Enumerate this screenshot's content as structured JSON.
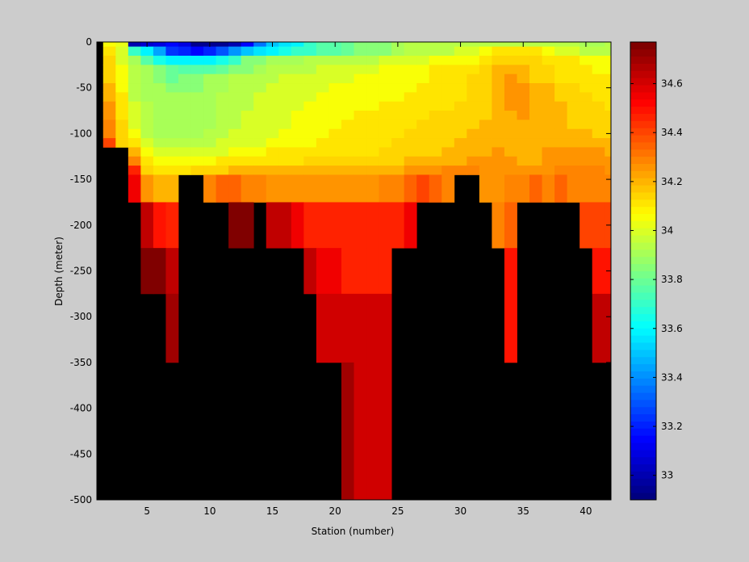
{
  "chart_data": {
    "type": "heatmap",
    "title": "",
    "xlabel": "Station (number)",
    "ylabel": "Depth (meter)",
    "xlim": [
      1,
      42
    ],
    "ylim": [
      -500,
      0
    ],
    "x_ticks": [
      5,
      10,
      15,
      20,
      25,
      30,
      35,
      40
    ],
    "y_ticks": [
      0,
      -50,
      -100,
      -150,
      -200,
      -250,
      -300,
      -350,
      -400,
      -450,
      -500
    ],
    "colorbar": {
      "colormap": "jet",
      "clim": [
        32.9,
        34.77
      ],
      "ticks": [
        33,
        33.2,
        33.4,
        33.6,
        33.8,
        34,
        34.2,
        34.4,
        34.6
      ],
      "levels": 64
    },
    "missing_color": "#000000",
    "grid": false,
    "stations": [
      2,
      3,
      4,
      5,
      6,
      7,
      8,
      9,
      10,
      11,
      12,
      13,
      14,
      15,
      16,
      17,
      18,
      19,
      20,
      21,
      22,
      23,
      24,
      25,
      26,
      27,
      28,
      29,
      30,
      31,
      32,
      33,
      34,
      35,
      36,
      37,
      38,
      39,
      40,
      41,
      42
    ],
    "depth_bins": [
      {
        "label": "0",
        "top": 0,
        "bottom": -5
      },
      {
        "label": "-10",
        "top": -5,
        "bottom": -15
      },
      {
        "label": "-20",
        "top": -15,
        "bottom": -25
      },
      {
        "label": "-30",
        "top": -25,
        "bottom": -35
      },
      {
        "label": "-40",
        "top": -35,
        "bottom": -45
      },
      {
        "label": "-50",
        "top": -45,
        "bottom": -55
      },
      {
        "label": "-60",
        "top": -55,
        "bottom": -65
      },
      {
        "label": "-70",
        "top": -65,
        "bottom": -75
      },
      {
        "label": "-80",
        "top": -75,
        "bottom": -85
      },
      {
        "label": "-90",
        "top": -85,
        "bottom": -95
      },
      {
        "label": "-100",
        "top": -95,
        "bottom": -105
      },
      {
        "label": "-110",
        "top": -105,
        "bottom": -115
      },
      {
        "label": "-120",
        "top": -115,
        "bottom": -125
      },
      {
        "label": "-130",
        "top": -125,
        "bottom": -135
      },
      {
        "label": "-140",
        "top": -135,
        "bottom": -145
      },
      {
        "label": "-150",
        "top": -145,
        "bottom": -175
      },
      {
        "label": "-200",
        "top": -175,
        "bottom": -225
      },
      {
        "label": "-250",
        "top": -225,
        "bottom": -275
      },
      {
        "label": "-300",
        "top": -275,
        "bottom": -350
      },
      {
        "label": "-400",
        "top": -350,
        "bottom": -450
      },
      {
        "label": "-500",
        "top": -450,
        "bottom": -500
      }
    ],
    "salinity": [
      [
        34.05,
        34.02,
        33.0,
        33.05,
        33.1,
        33.15,
        33.1,
        32.95,
        32.95,
        32.95,
        33.0,
        33.15,
        33.35,
        33.5,
        33.55,
        33.6,
        33.7,
        33.75,
        33.75,
        33.8,
        33.85,
        33.85,
        33.85,
        33.9,
        33.95,
        33.95,
        33.95,
        33.95,
        33.95,
        33.95,
        33.95,
        33.95,
        33.95,
        33.95,
        33.95,
        33.95,
        33.95,
        33.95,
        33.9,
        33.9,
        33.95
      ],
      [
        34.1,
        34.0,
        33.7,
        33.6,
        33.45,
        33.25,
        33.2,
        33.15,
        33.2,
        33.3,
        33.4,
        33.5,
        33.55,
        33.6,
        33.65,
        33.7,
        33.7,
        33.75,
        33.75,
        33.8,
        33.85,
        33.85,
        33.85,
        33.9,
        33.95,
        33.95,
        33.95,
        33.95,
        34.0,
        34.0,
        34.05,
        34.1,
        34.1,
        34.1,
        34.1,
        34.05,
        34.0,
        34.0,
        33.95,
        33.95,
        33.95
      ],
      [
        34.15,
        34.0,
        33.9,
        33.75,
        33.65,
        33.6,
        33.6,
        33.6,
        33.6,
        33.65,
        33.7,
        33.85,
        33.85,
        33.9,
        33.9,
        33.9,
        33.95,
        33.95,
        33.95,
        33.95,
        33.95,
        33.95,
        34.0,
        34.0,
        34.0,
        34.0,
        34.05,
        34.05,
        34.05,
        34.05,
        34.1,
        34.15,
        34.15,
        34.15,
        34.15,
        34.1,
        34.1,
        34.1,
        34.05,
        34.05,
        34.05
      ],
      [
        34.15,
        34.05,
        33.95,
        33.9,
        33.85,
        33.8,
        33.75,
        33.75,
        33.75,
        33.8,
        33.85,
        33.85,
        33.9,
        33.95,
        33.95,
        33.95,
        33.95,
        34.0,
        34.0,
        34.0,
        34.0,
        34.0,
        34.05,
        34.05,
        34.05,
        34.05,
        34.1,
        34.1,
        34.1,
        34.1,
        34.15,
        34.2,
        34.2,
        34.2,
        34.15,
        34.15,
        34.1,
        34.1,
        34.1,
        34.05,
        34.05
      ],
      [
        34.15,
        34.05,
        33.95,
        33.9,
        33.85,
        33.8,
        33.85,
        33.85,
        33.9,
        33.9,
        33.95,
        33.95,
        33.95,
        33.95,
        34.0,
        34.0,
        34.0,
        34.0,
        34.0,
        34.0,
        34.05,
        34.05,
        34.05,
        34.05,
        34.05,
        34.05,
        34.1,
        34.1,
        34.1,
        34.15,
        34.15,
        34.2,
        34.25,
        34.2,
        34.15,
        34.15,
        34.1,
        34.1,
        34.1,
        34.1,
        34.1
      ],
      [
        34.2,
        34.05,
        33.95,
        33.9,
        33.9,
        33.85,
        33.85,
        33.85,
        33.9,
        33.9,
        33.95,
        33.95,
        33.95,
        34.0,
        34.0,
        34.0,
        34.0,
        34.0,
        34.05,
        34.05,
        34.05,
        34.05,
        34.05,
        34.05,
        34.05,
        34.1,
        34.1,
        34.1,
        34.1,
        34.15,
        34.15,
        34.2,
        34.25,
        34.25,
        34.2,
        34.2,
        34.15,
        34.15,
        34.1,
        34.1,
        34.1
      ],
      [
        34.2,
        34.1,
        33.95,
        33.9,
        33.9,
        33.9,
        33.9,
        33.9,
        33.9,
        33.95,
        33.95,
        33.95,
        34.0,
        34.0,
        34.0,
        34.0,
        34.0,
        34.05,
        34.05,
        34.05,
        34.05,
        34.05,
        34.05,
        34.05,
        34.1,
        34.1,
        34.1,
        34.1,
        34.1,
        34.15,
        34.15,
        34.2,
        34.25,
        34.25,
        34.2,
        34.2,
        34.15,
        34.15,
        34.15,
        34.1,
        34.1
      ],
      [
        34.25,
        34.1,
        34.0,
        33.95,
        33.9,
        33.9,
        33.9,
        33.9,
        33.9,
        33.95,
        33.95,
        33.95,
        34.0,
        34.0,
        34.0,
        34.0,
        34.05,
        34.05,
        34.05,
        34.05,
        34.05,
        34.05,
        34.1,
        34.1,
        34.1,
        34.1,
        34.1,
        34.1,
        34.15,
        34.15,
        34.15,
        34.2,
        34.25,
        34.25,
        34.2,
        34.2,
        34.2,
        34.15,
        34.15,
        34.15,
        34.1
      ],
      [
        34.25,
        34.1,
        34.0,
        33.95,
        33.9,
        33.9,
        33.9,
        33.9,
        33.9,
        33.95,
        33.95,
        34.0,
        34.0,
        34.0,
        34.0,
        34.05,
        34.05,
        34.05,
        34.05,
        34.05,
        34.1,
        34.1,
        34.1,
        34.1,
        34.1,
        34.1,
        34.15,
        34.15,
        34.15,
        34.15,
        34.15,
        34.2,
        34.2,
        34.25,
        34.2,
        34.2,
        34.2,
        34.15,
        34.15,
        34.15,
        34.15
      ],
      [
        34.3,
        34.15,
        34.0,
        33.95,
        33.9,
        33.9,
        33.9,
        33.9,
        33.9,
        33.95,
        33.95,
        34.0,
        34.0,
        34.0,
        34.0,
        34.05,
        34.05,
        34.05,
        34.05,
        34.1,
        34.1,
        34.1,
        34.1,
        34.1,
        34.1,
        34.15,
        34.15,
        34.15,
        34.15,
        34.15,
        34.2,
        34.2,
        34.2,
        34.2,
        34.2,
        34.2,
        34.2,
        34.15,
        34.15,
        34.15,
        34.15
      ],
      [
        34.3,
        34.15,
        34.05,
        33.95,
        33.9,
        33.9,
        33.9,
        33.9,
        33.95,
        33.95,
        34.0,
        34.0,
        34.0,
        34.0,
        34.05,
        34.05,
        34.05,
        34.05,
        34.1,
        34.1,
        34.1,
        34.1,
        34.1,
        34.1,
        34.15,
        34.15,
        34.15,
        34.15,
        34.15,
        34.2,
        34.2,
        34.2,
        34.2,
        34.2,
        34.2,
        34.2,
        34.2,
        34.2,
        34.2,
        34.15,
        34.15
      ],
      [
        34.4,
        34.15,
        34.1,
        34.0,
        33.95,
        33.95,
        33.95,
        33.95,
        33.95,
        34.0,
        34.0,
        34.0,
        34.0,
        34.05,
        34.05,
        34.05,
        34.05,
        34.1,
        34.1,
        34.1,
        34.1,
        34.1,
        34.1,
        34.15,
        34.15,
        34.15,
        34.15,
        34.15,
        34.2,
        34.2,
        34.2,
        34.2,
        34.2,
        34.2,
        34.2,
        34.2,
        34.2,
        34.2,
        34.2,
        34.2,
        34.2
      ],
      [
        null,
        null,
        34.2,
        34.05,
        34.0,
        34.0,
        34.0,
        34.0,
        34.0,
        34.0,
        34.05,
        34.05,
        34.05,
        34.1,
        34.1,
        34.1,
        34.1,
        34.1,
        34.1,
        34.1,
        34.1,
        34.1,
        34.15,
        34.15,
        34.15,
        34.15,
        34.15,
        34.2,
        34.2,
        34.2,
        34.2,
        34.25,
        34.2,
        34.2,
        34.2,
        34.25,
        34.25,
        34.25,
        34.25,
        34.25,
        34.2
      ],
      [
        null,
        null,
        34.3,
        34.1,
        34.05,
        34.05,
        34.05,
        34.05,
        34.05,
        34.1,
        34.1,
        34.1,
        34.1,
        34.1,
        34.1,
        34.1,
        34.15,
        34.15,
        34.15,
        34.15,
        34.15,
        34.15,
        34.15,
        34.15,
        34.2,
        34.2,
        34.2,
        34.2,
        34.2,
        34.25,
        34.25,
        34.25,
        34.25,
        34.2,
        34.2,
        34.25,
        34.25,
        34.25,
        34.25,
        34.25,
        34.25
      ],
      [
        null,
        null,
        34.45,
        34.15,
        34.1,
        34.1,
        34.1,
        34.15,
        34.15,
        34.15,
        34.2,
        34.2,
        34.2,
        34.2,
        34.2,
        34.2,
        34.2,
        34.2,
        34.2,
        34.2,
        34.2,
        34.2,
        34.2,
        34.2,
        34.25,
        34.25,
        34.25,
        34.3,
        34.3,
        34.3,
        34.25,
        34.25,
        34.25,
        34.25,
        34.25,
        34.25,
        34.3,
        34.3,
        34.3,
        34.3,
        34.25
      ],
      [
        null,
        null,
        34.55,
        34.25,
        34.2,
        34.2,
        null,
        null,
        34.3,
        34.35,
        34.35,
        34.3,
        34.3,
        34.25,
        34.25,
        34.25,
        34.25,
        34.25,
        34.25,
        34.25,
        34.25,
        34.25,
        34.3,
        34.3,
        34.35,
        34.4,
        34.35,
        34.3,
        null,
        null,
        34.25,
        34.25,
        34.3,
        34.3,
        34.35,
        34.3,
        34.35,
        34.3,
        34.3,
        34.3,
        34.3
      ],
      [
        null,
        null,
        null,
        34.65,
        34.5,
        34.45,
        null,
        null,
        null,
        null,
        34.75,
        34.75,
        null,
        34.65,
        34.65,
        34.55,
        34.45,
        34.45,
        34.45,
        34.45,
        34.45,
        34.45,
        34.45,
        34.45,
        34.55,
        null,
        null,
        null,
        null,
        null,
        null,
        34.3,
        34.35,
        null,
        null,
        null,
        null,
        null,
        34.4,
        34.4,
        34.4
      ],
      [
        null,
        null,
        null,
        34.75,
        34.75,
        34.65,
        null,
        null,
        null,
        null,
        null,
        null,
        null,
        null,
        null,
        null,
        34.65,
        34.55,
        34.55,
        34.45,
        34.45,
        34.45,
        34.45,
        null,
        null,
        null,
        null,
        null,
        null,
        null,
        null,
        null,
        34.5,
        null,
        null,
        null,
        null,
        null,
        null,
        34.5,
        34.5
      ],
      [
        null,
        null,
        null,
        null,
        null,
        34.7,
        null,
        null,
        null,
        null,
        null,
        null,
        null,
        null,
        null,
        null,
        null,
        34.6,
        34.6,
        34.6,
        34.6,
        34.6,
        34.6,
        null,
        null,
        null,
        null,
        null,
        null,
        null,
        null,
        null,
        34.5,
        null,
        null,
        null,
        null,
        null,
        null,
        34.65,
        34.65
      ],
      [
        null,
        null,
        null,
        null,
        null,
        null,
        null,
        null,
        null,
        null,
        null,
        null,
        null,
        null,
        null,
        null,
        null,
        null,
        null,
        34.7,
        34.6,
        34.6,
        34.6,
        null,
        null,
        null,
        null,
        null,
        null,
        null,
        null,
        null,
        null,
        null,
        null,
        null,
        null,
        null,
        null,
        null,
        null
      ],
      [
        null,
        null,
        null,
        null,
        null,
        null,
        null,
        null,
        null,
        null,
        null,
        null,
        null,
        null,
        null,
        null,
        null,
        null,
        null,
        34.7,
        34.6,
        34.6,
        34.6,
        null,
        null,
        null,
        null,
        null,
        null,
        null,
        null,
        null,
        null,
        null,
        null,
        null,
        null,
        null,
        null,
        null,
        null
      ]
    ]
  }
}
